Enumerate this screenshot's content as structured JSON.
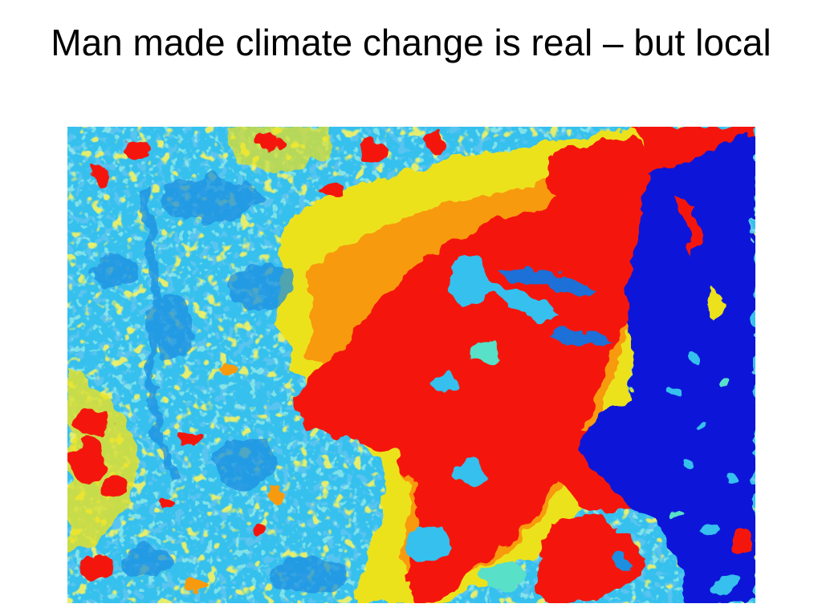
{
  "slide": {
    "title": "Man made climate change is real – but local"
  },
  "heatmap": {
    "kind": "thermal satellite image",
    "colors": {
      "water": "#0a14d8",
      "cool": "#35c0ee",
      "cool_deep": "#1e8fe0",
      "mild": "#58e0c8",
      "warm": "#ece21e",
      "hot_orange": "#f89a10",
      "hot": "#f41408"
    }
  }
}
